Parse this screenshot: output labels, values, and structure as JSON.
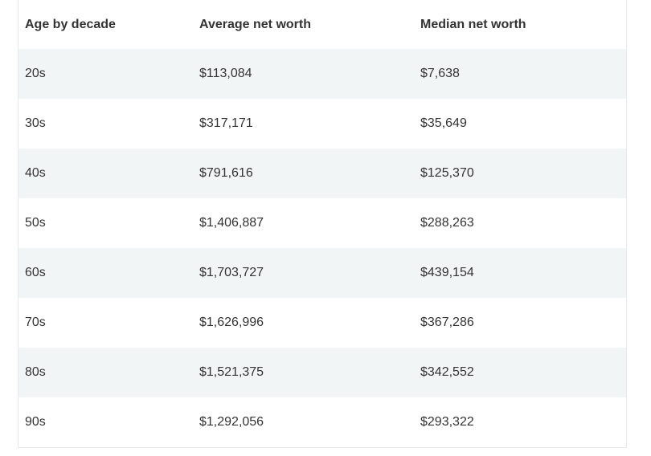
{
  "table": {
    "headers": [
      "Age by decade",
      "Average net worth",
      "Median net worth"
    ],
    "rows": [
      [
        "20s",
        "$113,084",
        "$7,638"
      ],
      [
        "30s",
        "$317,171",
        "$35,649"
      ],
      [
        "40s",
        "$791,616",
        "$125,370"
      ],
      [
        "50s",
        "$1,406,887",
        "$288,263"
      ],
      [
        "60s",
        "$1,703,727",
        "$439,154"
      ],
      [
        "70s",
        "$1,626,996",
        "$367,286"
      ],
      [
        "80s",
        "$1,521,375",
        "$342,552"
      ],
      [
        "90s",
        "$1,292,056",
        "$293,322"
      ]
    ]
  }
}
